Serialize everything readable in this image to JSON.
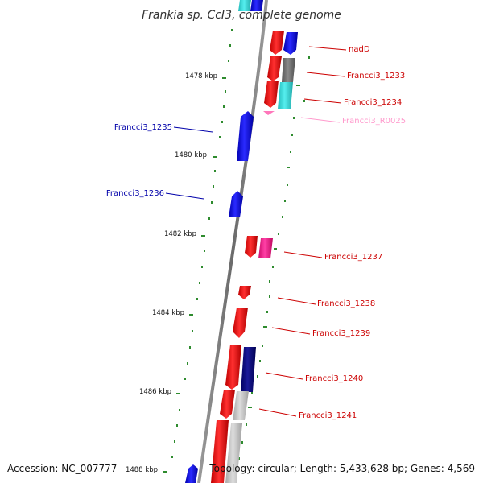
{
  "title": "Frankia sp. CcI3, complete genome",
  "footer": {
    "accession": "Accession: NC_007777",
    "topology": "Topology: circular; Length: 5,433,628 bp; Genes: 4,569"
  },
  "colors": {
    "backbone": "#808080",
    "tick": "#2e8b2e",
    "red_gene": "#ff0000",
    "blue_gene": "#0000ff",
    "navy_gene": "#000080",
    "cyan_gene": "#33dddd",
    "gray_gene": "#777777",
    "light_gray_gene": "#c8c8c8",
    "pink_gene": "#ff1493",
    "rna_label": "#ff99cc"
  },
  "kbp_labels": [
    "1478 kbp",
    "1480 kbp",
    "1482 kbp",
    "1484 kbp",
    "1486 kbp",
    "1488 kbp"
  ],
  "gene_labels": [
    {
      "text": "nadD",
      "color": "#cc0000"
    },
    {
      "text": "Francci3_1233",
      "color": "#cc0000"
    },
    {
      "text": "Francci3_1234",
      "color": "#cc0000"
    },
    {
      "text": "Francci3_R0025",
      "color": "#ff99cc"
    },
    {
      "text": "Francci3_1235",
      "color": "#0000aa"
    },
    {
      "text": "Francci3_1236",
      "color": "#0000aa"
    },
    {
      "text": "Francci3_1237",
      "color": "#cc0000"
    },
    {
      "text": "Francci3_1238",
      "color": "#cc0000"
    },
    {
      "text": "Francci3_1239",
      "color": "#cc0000"
    },
    {
      "text": "Francci3_1240",
      "color": "#cc0000"
    },
    {
      "text": "Francci3_1241",
      "color": "#cc0000"
    }
  ]
}
